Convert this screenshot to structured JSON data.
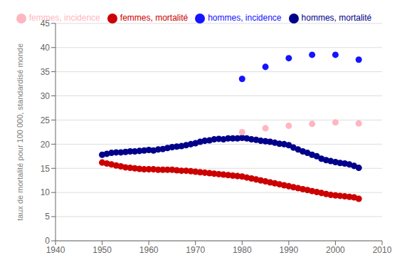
{
  "chart_data": {
    "type": "scatter",
    "ylabel": "taux de mortalité pour 100 000, standardisé monde",
    "xlim": [
      1940,
      2010
    ],
    "ylim": [
      0,
      45
    ],
    "xticks": [
      1940,
      1950,
      1960,
      1970,
      1980,
      1990,
      2000,
      2010
    ],
    "yticks": [
      0,
      5,
      10,
      15,
      20,
      25,
      30,
      35,
      40,
      45
    ],
    "grid": "y",
    "legend": "top",
    "marker": "circle",
    "series": [
      {
        "name": "hommes, mortalité",
        "color": "#00008B",
        "x": [
          1950,
          1951,
          1952,
          1953,
          1954,
          1955,
          1956,
          1957,
          1958,
          1959,
          1960,
          1961,
          1962,
          1963,
          1964,
          1965,
          1966,
          1967,
          1968,
          1969,
          1970,
          1971,
          1972,
          1973,
          1974,
          1975,
          1976,
          1977,
          1978,
          1979,
          1980,
          1981,
          1982,
          1983,
          1984,
          1985,
          1986,
          1987,
          1988,
          1989,
          1990,
          1991,
          1992,
          1993,
          1994,
          1995,
          1996,
          1997,
          1998,
          1999,
          2000,
          2001,
          2002,
          2003,
          2004,
          2005
        ],
        "values": [
          17.8,
          18.0,
          18.2,
          18.3,
          18.3,
          18.4,
          18.5,
          18.5,
          18.6,
          18.7,
          18.8,
          18.7,
          18.9,
          19.0,
          19.2,
          19.4,
          19.5,
          19.6,
          19.8,
          20.0,
          20.2,
          20.5,
          20.7,
          20.8,
          21.0,
          21.1,
          21.0,
          21.2,
          21.2,
          21.2,
          21.3,
          21.2,
          21.0,
          20.9,
          20.7,
          20.6,
          20.5,
          20.3,
          20.1,
          20.0,
          19.8,
          19.3,
          18.9,
          18.5,
          18.2,
          17.8,
          17.5,
          17.0,
          16.7,
          16.5,
          16.3,
          16.1,
          16.0,
          15.8,
          15.5,
          15.1
        ]
      },
      {
        "name": "hommes, incidence",
        "color": "#1414FF",
        "x": [
          1980,
          1985,
          1990,
          1995,
          2000,
          2005
        ],
        "values": [
          33.5,
          36.0,
          37.8,
          38.5,
          38.5,
          37.5
        ]
      },
      {
        "name": "femmes, mortalité",
        "color": "#CC0000",
        "x": [
          1950,
          1951,
          1952,
          1953,
          1954,
          1955,
          1956,
          1957,
          1958,
          1959,
          1960,
          1961,
          1962,
          1963,
          1964,
          1965,
          1966,
          1967,
          1968,
          1969,
          1970,
          1971,
          1972,
          1973,
          1974,
          1975,
          1976,
          1977,
          1978,
          1979,
          1980,
          1981,
          1982,
          1983,
          1984,
          1985,
          1986,
          1987,
          1988,
          1989,
          1990,
          1991,
          1992,
          1993,
          1994,
          1995,
          1996,
          1997,
          1998,
          1999,
          2000,
          2001,
          2002,
          2003,
          2004,
          2005
        ],
        "values": [
          16.2,
          16.0,
          15.8,
          15.6,
          15.4,
          15.2,
          15.1,
          15.0,
          14.9,
          14.8,
          14.8,
          14.8,
          14.7,
          14.7,
          14.7,
          14.7,
          14.6,
          14.5,
          14.5,
          14.4,
          14.3,
          14.2,
          14.1,
          14.0,
          13.9,
          13.8,
          13.7,
          13.6,
          13.5,
          13.4,
          13.3,
          13.1,
          12.9,
          12.7,
          12.5,
          12.3,
          12.1,
          11.9,
          11.7,
          11.5,
          11.3,
          11.1,
          10.9,
          10.7,
          10.5,
          10.3,
          10.1,
          9.9,
          9.7,
          9.5,
          9.4,
          9.3,
          9.2,
          9.1,
          9.0,
          8.7
        ]
      },
      {
        "name": "femmes, incidence",
        "color": "#FFB6C1",
        "x": [
          1980,
          1985,
          1990,
          1995,
          2000,
          2005
        ],
        "values": [
          22.5,
          23.3,
          23.8,
          24.2,
          24.5,
          24.3
        ]
      }
    ]
  }
}
